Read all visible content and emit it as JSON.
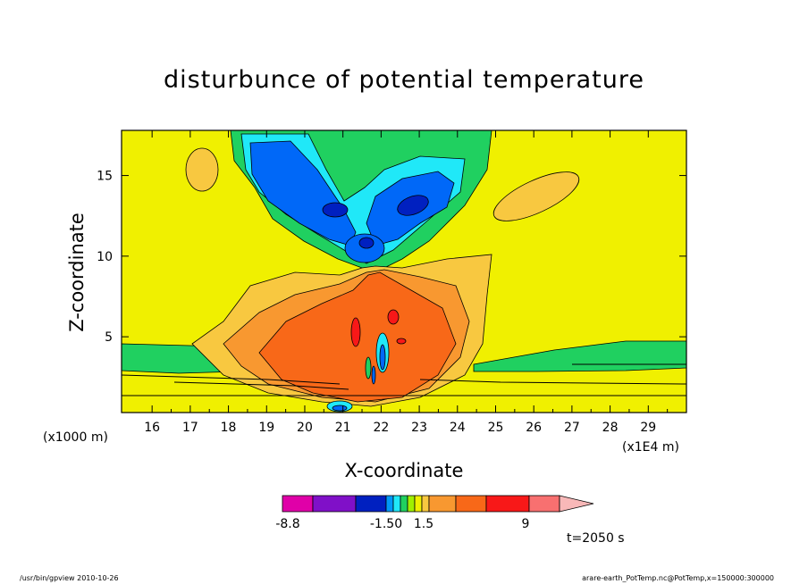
{
  "chart_data": {
    "type": "heatmap",
    "title": "disturbunce of potential temperature",
    "xlabel": "X-coordinate",
    "ylabel": "Z-coordinate",
    "x_unit_note": "(x1E4 m)",
    "y_unit_note": "(x1000 m)",
    "xlim": [
      15.2,
      30.0
    ],
    "ylim": [
      0.3,
      17.8
    ],
    "x_ticks": [
      "16",
      "17",
      "18",
      "19",
      "20",
      "21",
      "22",
      "23",
      "24",
      "25",
      "26",
      "27",
      "28",
      "29"
    ],
    "y_ticks": [
      "5",
      "10",
      "15"
    ],
    "colorbar": {
      "labels": [
        "-8.8",
        "-1.50",
        "1.5",
        "9"
      ],
      "colors": [
        "#e000a8",
        "#8010c8",
        "#0020c0",
        "#0098f8",
        "#20e8f8",
        "#20d060",
        "#a0f000",
        "#f0f000",
        "#f8c840",
        "#f89830",
        "#f86818",
        "#f81818",
        "#f87070",
        "#f8b8b8"
      ]
    },
    "time_label": "t=2050 s",
    "colors": {
      "background": "#f0f000",
      "green": "#20d060",
      "cyan": "#20e8f8",
      "blue": "#0068f8",
      "darkblue": "#0020c0",
      "lightorange": "#f8c840",
      "orange": "#f89830",
      "darkorange": "#f86818",
      "red": "#f81818"
    }
  },
  "footer": {
    "left": "/usr/bin/gpview   2010-10-26",
    "right": "arare-earth_PotTemp.nc@PotTemp,x=150000:300000"
  }
}
